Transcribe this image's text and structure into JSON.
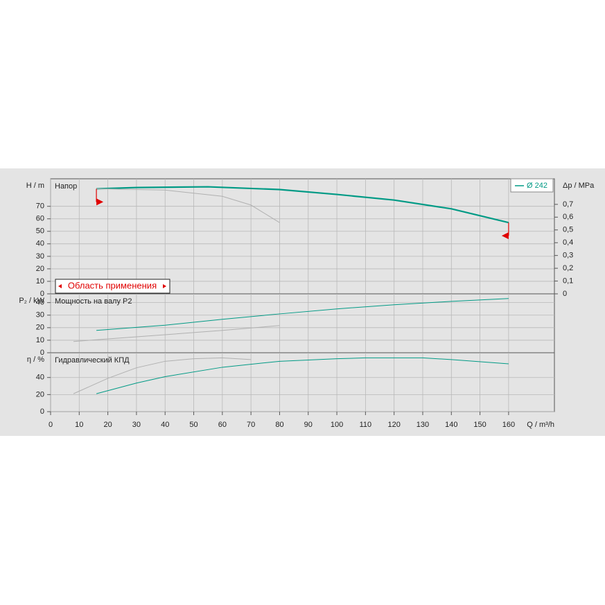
{
  "chart_data": [
    {
      "type": "line",
      "title": "Напор",
      "ylabel": "H / m",
      "y2label": "Δp / MPa",
      "xlim": [
        0,
        176
      ],
      "ylim": [
        0,
        92
      ],
      "yticks": [
        0,
        10,
        20,
        30,
        40,
        50,
        60,
        70
      ],
      "y2lim": [
        0,
        0.9
      ],
      "y2ticks": [
        0,
        {
          "value": 0.1,
          "label": "0,1"
        },
        {
          "value": 0.2,
          "label": "0,2"
        },
        {
          "value": 0.3,
          "label": "0,3"
        },
        {
          "value": 0.4,
          "label": "0,4"
        },
        {
          "value": 0.5,
          "label": "0,5"
        },
        {
          "value": 0.6,
          "label": "0,6"
        },
        {
          "value": 0.7,
          "label": "0,7"
        }
      ],
      "range_label": "Область применения",
      "range": [
        16,
        160
      ],
      "range_color": "#e00000",
      "series": [
        {
          "name": "Ø 242",
          "color": "#009a85",
          "x": [
            16,
            30,
            55,
            80,
            100,
            120,
            140,
            160
          ],
          "values": [
            84,
            85,
            85.6,
            83.4,
            79.5,
            75,
            68,
            57
          ]
        },
        {
          "color": "#b0b0b0",
          "x": [
            16,
            40,
            60,
            70,
            80
          ],
          "values": [
            84,
            83,
            78,
            71,
            57
          ]
        }
      ]
    },
    {
      "type": "line",
      "title": "Мощность на валу P2",
      "ylabel": "P₂ / kW",
      "xlim": [
        0,
        176
      ],
      "ylim": [
        0,
        47
      ],
      "yticks": [
        0,
        10,
        20,
        30,
        40
      ],
      "series": [
        {
          "color": "#009a85",
          "x": [
            16,
            40,
            60,
            80,
            100,
            120,
            140,
            160
          ],
          "values": [
            17.8,
            22,
            26.7,
            31,
            35,
            38.3,
            41,
            43.3
          ]
        },
        {
          "color": "#b0b0b0",
          "x": [
            8,
            40,
            60,
            80
          ],
          "values": [
            9,
            14.4,
            17.8,
            21.7
          ]
        }
      ]
    },
    {
      "type": "line",
      "title": "Гидравлический КПД",
      "ylabel": "η / %",
      "xlabel": "Q / m³/h",
      "xlim": [
        0,
        176
      ],
      "xticks": [
        0,
        10,
        20,
        30,
        40,
        50,
        60,
        70,
        80,
        90,
        100,
        110,
        120,
        130,
        140,
        150,
        160
      ],
      "ylim": [
        0,
        69
      ],
      "yticks": [
        0,
        20,
        40
      ],
      "series": [
        {
          "color": "#009a85",
          "x": [
            16,
            30,
            40,
            60,
            80,
            100,
            110,
            130,
            140,
            160
          ],
          "values": [
            21,
            33.5,
            41,
            52,
            59,
            62,
            63,
            63,
            61,
            56
          ]
        },
        {
          "color": "#b0b0b0",
          "x": [
            8,
            20,
            30,
            40,
            50,
            60,
            70
          ],
          "values": [
            21,
            39,
            51.4,
            59,
            62,
            63,
            61
          ]
        }
      ]
    }
  ]
}
